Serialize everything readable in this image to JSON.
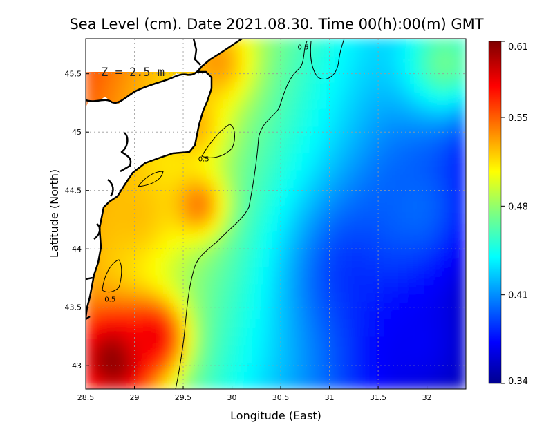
{
  "chart_data": {
    "type": "heatmap",
    "title": "Sea Level (cm). Date 2021.08.30. Time 00(h):00(m) GMT",
    "xlabel": "Longitude (East)",
    "ylabel": "Latitude (North)",
    "depth_label": "Z = 2.5 m",
    "xlim": [
      28.5,
      32.4
    ],
    "ylim": [
      42.8,
      45.8
    ],
    "x_ticks": [
      {
        "value": 28.5,
        "label": "28.5"
      },
      {
        "value": 29,
        "label": "29"
      },
      {
        "value": 29.5,
        "label": "29.5"
      },
      {
        "value": 30,
        "label": "30"
      },
      {
        "value": 30.5,
        "label": "30.5"
      },
      {
        "value": 31,
        "label": "31"
      },
      {
        "value": 31.5,
        "label": "31.5"
      },
      {
        "value": 32,
        "label": "32"
      }
    ],
    "y_ticks": [
      {
        "value": 43,
        "label": "43"
      },
      {
        "value": 43.5,
        "label": "43.5"
      },
      {
        "value": 44,
        "label": "44"
      },
      {
        "value": 44.5,
        "label": "44.5"
      },
      {
        "value": 45,
        "label": "45"
      },
      {
        "value": 45.5,
        "label": "45.5"
      }
    ],
    "colorbar": {
      "min": 0.34,
      "max": 0.61,
      "ticks": [
        {
          "value": 0.61,
          "label": "0.61"
        },
        {
          "value": 0.55,
          "label": "0.55"
        },
        {
          "value": 0.48,
          "label": "0.48"
        },
        {
          "value": 0.41,
          "label": "0.41"
        },
        {
          "value": 0.34,
          "label": "0.34"
        }
      ]
    },
    "grid": true,
    "contour_level": 0.5,
    "contour_labels": [
      {
        "text": "0.5",
        "lon": 30.73,
        "lat": 45.73
      },
      {
        "text": "0.5",
        "lon": 29.71,
        "lat": 44.77
      },
      {
        "text": "0.5",
        "lon": 28.75,
        "lat": 43.57
      }
    ],
    "field_features": [
      {
        "lon": 28.8,
        "lat": 43.05,
        "value": 0.61,
        "spread": 0.32
      },
      {
        "lon": 29.2,
        "lat": 43.25,
        "value": 0.58,
        "spread": 0.22
      },
      {
        "lon": 29.65,
        "lat": 44.38,
        "value": 0.545,
        "spread": 0.2
      },
      {
        "lon": 29.85,
        "lat": 45.6,
        "value": 0.535,
        "spread": 0.25
      },
      {
        "lon": 29.6,
        "lat": 45.05,
        "value": 0.53,
        "spread": 0.22
      },
      {
        "lon": 29.0,
        "lat": 44.3,
        "value": 0.525,
        "spread": 0.3
      },
      {
        "lon": 31.3,
        "lat": 43.8,
        "value": 0.385,
        "spread": 0.45
      },
      {
        "lon": 32.3,
        "lat": 42.95,
        "value": 0.345,
        "spread": 0.4
      },
      {
        "lon": 31.9,
        "lat": 43.2,
        "value": 0.37,
        "spread": 0.4
      },
      {
        "lon": 31.9,
        "lat": 44.35,
        "value": 0.4,
        "spread": 0.35
      },
      {
        "lon": 32.2,
        "lat": 45.6,
        "value": 0.47,
        "spread": 0.35
      }
    ]
  }
}
